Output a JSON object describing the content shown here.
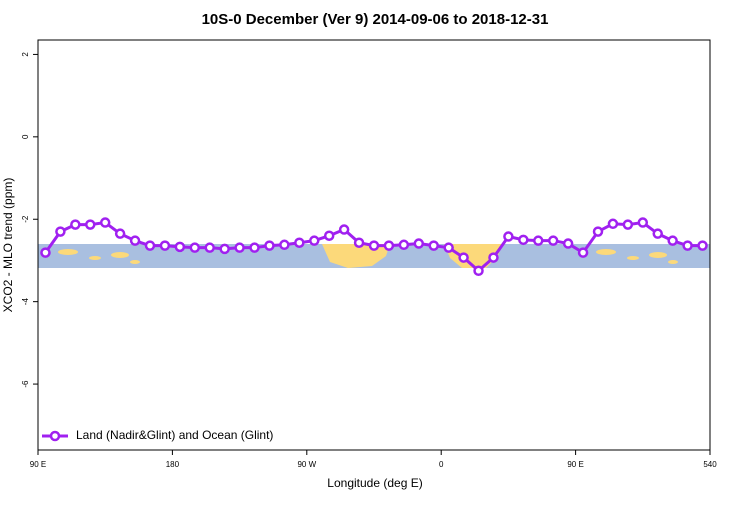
{
  "chart_data": {
    "type": "line",
    "title": "10S-0 December (Ver 9)   2014-09-06 to 2018-12-31",
    "xlabel": "Longitude (deg E)",
    "ylabel": "XCO2 - MLO trend (ppm)",
    "x": [
      95,
      105,
      115,
      125,
      135,
      145,
      155,
      165,
      175,
      185,
      195,
      205,
      215,
      225,
      235,
      245,
      255,
      265,
      275,
      285,
      295,
      305,
      315,
      325,
      335,
      345,
      355,
      365,
      375,
      385,
      395,
      405,
      415,
      425,
      435,
      445,
      455,
      465,
      475,
      485,
      495,
      505,
      515,
      525,
      535
    ],
    "series": [
      {
        "name": "Land (Nadir&Glint) and Ocean (Glint)",
        "color": "#a020f0",
        "values": [
          -2.81,
          -2.3,
          -2.13,
          -2.13,
          -2.08,
          -2.35,
          -2.52,
          -2.64,
          -2.64,
          -2.67,
          -2.69,
          -2.69,
          -2.72,
          -2.69,
          -2.69,
          -2.64,
          -2.62,
          -2.57,
          -2.52,
          -2.4,
          -2.25,
          -2.57,
          -2.64,
          -2.64,
          -2.62,
          -2.59,
          -2.64,
          -2.69,
          -2.93,
          -3.25,
          -2.93,
          -2.42,
          -2.5,
          -2.52,
          -2.52,
          -2.59,
          -2.81,
          -2.3,
          -2.11,
          -2.13,
          -2.08,
          -2.35,
          -2.52,
          -2.64,
          -2.64
        ]
      }
    ],
    "xlim": [
      90,
      540
    ],
    "xticks": [
      {
        "value": 90,
        "label": "90 E"
      },
      180,
      {
        "value": 270,
        "label": "90 W"
      },
      {
        "value": 360,
        "label": "0"
      },
      {
        "value": 450,
        "label": "90 E"
      },
      540
    ],
    "ylim": [
      -7.6,
      2.35
    ],
    "yticks": [
      2,
      0,
      -2,
      -4,
      -6
    ],
    "legend": "bottom-left"
  }
}
